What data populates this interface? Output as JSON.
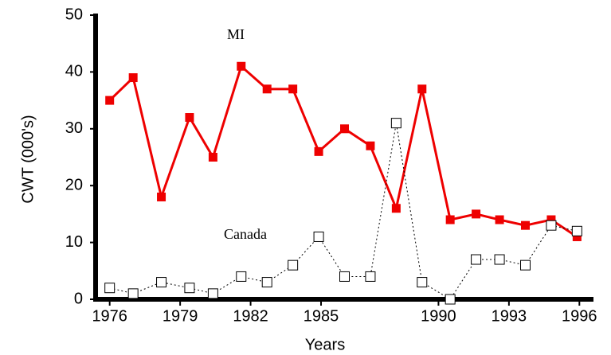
{
  "chart_data": {
    "type": "line",
    "x": [
      1976,
      1977,
      1978.2,
      1979.4,
      1980.4,
      1981.6,
      1982.7,
      1983.8,
      1984.9,
      1986.0,
      1987.1,
      1988.2,
      1989.3,
      1990.5,
      1991.6,
      1992.6,
      1993.7,
      1994.8,
      1995.9
    ],
    "series": [
      {
        "name": "MI",
        "color": "#ee0000",
        "values": [
          35,
          39,
          18,
          32,
          25,
          41,
          37,
          37,
          26,
          30,
          27,
          16,
          37,
          14,
          15,
          14,
          13,
          14,
          11
        ]
      },
      {
        "name": "Canada",
        "color": "#000000",
        "values": [
          2,
          1,
          3,
          2,
          1,
          4,
          3,
          6,
          11,
          4,
          4,
          31,
          3,
          0,
          7,
          7,
          6,
          13,
          12
        ]
      }
    ],
    "xlabel": "Years",
    "ylabel": "CWT (000's)",
    "xlim": [
      1975.4,
      1996.6
    ],
    "xticks": [
      1976,
      1979,
      1982,
      1985,
      1990,
      1993,
      1996
    ],
    "ylim": [
      0,
      50
    ],
    "yticks": [
      0,
      10,
      20,
      30,
      40,
      50
    ]
  }
}
